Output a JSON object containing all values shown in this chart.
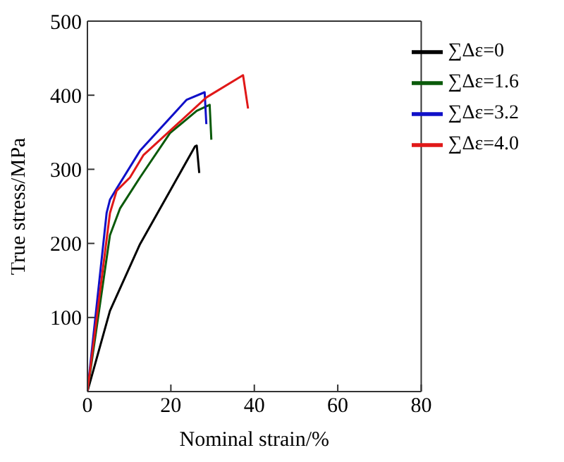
{
  "chart_data": {
    "type": "line",
    "xlabel": "Nominal strain/%",
    "ylabel": "True stress/MPa",
    "xlim": [
      0,
      80
    ],
    "xticks": [
      0,
      20,
      40,
      60,
      80
    ],
    "ylim": [
      0,
      500
    ],
    "yticks": [
      {
        "value": 0,
        "label": null
      },
      100,
      200,
      300,
      400,
      500
    ],
    "legend": "top right",
    "marker": "none",
    "line_style": "solid",
    "series": [
      {
        "name": "∑Δε=0",
        "color": "#000000",
        "x": [
          0,
          5.4,
          12.6,
          19.8,
          25.8,
          26.2,
          26.8
        ],
        "values": [
          0,
          109,
          199,
          271,
          331,
          332,
          295
        ]
      },
      {
        "name": "∑Δε=1.6",
        "color": "#0a5a0a",
        "x": [
          0,
          5.4,
          7.8,
          12.6,
          19.8,
          26.2,
          29.3,
          29.7
        ],
        "values": [
          0,
          211,
          247,
          289,
          349,
          379,
          387,
          340
        ]
      },
      {
        "name": "∑Δε=3.2",
        "color": "#1010c8",
        "x": [
          0,
          4.6,
          5.4,
          7.0,
          12.6,
          23.8,
          28.1,
          28.5
        ],
        "values": [
          0,
          241,
          259,
          274,
          325,
          394,
          404,
          361
        ]
      },
      {
        "name": "∑Δε=4.0",
        "color": "#e01818",
        "x": [
          0,
          5.4,
          7.0,
          10.2,
          13.4,
          19.8,
          28.5,
          37.3,
          38.5
        ],
        "values": [
          0,
          241,
          271,
          289,
          319,
          352,
          397,
          427,
          382
        ]
      }
    ]
  }
}
